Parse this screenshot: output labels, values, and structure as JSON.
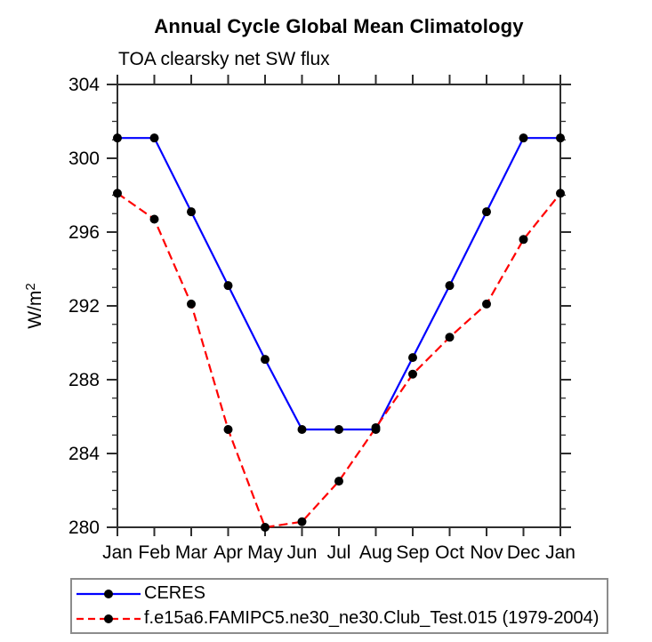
{
  "header": {
    "title": "Annual Cycle Global Mean Climatology",
    "subtitle": "TOA clearsky net SW flux"
  },
  "chart_data": {
    "type": "line",
    "title": "Annual Cycle Global Mean Climatology",
    "subtitle": "TOA clearsky net SW flux",
    "ylabel": "W/m^2",
    "ylabel_base": "W/m",
    "ylabel_sup": "2",
    "ylim": [
      280,
      304
    ],
    "yticks": [
      280,
      284,
      288,
      292,
      296,
      300,
      304
    ],
    "ytick_minor_step": 1,
    "grid": false,
    "legend_position": "below-bottom-left",
    "categories": [
      "Jan",
      "Feb",
      "Mar",
      "Apr",
      "May",
      "Jun",
      "Jul",
      "Aug",
      "Sep",
      "Oct",
      "Nov",
      "Dec",
      "Jan"
    ],
    "series": [
      {
        "name": "CERES",
        "color": "#0000ff",
        "line_style": "solid",
        "marker": "filled-circle",
        "marker_color": "#000000",
        "values": [
          301.1,
          301.1,
          297.1,
          293.1,
          289.1,
          285.3,
          285.3,
          285.3,
          289.2,
          293.1,
          297.1,
          301.1,
          301.1
        ]
      },
      {
        "name": "f.e15a6.FAMIPC5.ne30_ne30.Club_Test.015 (1979-2004)",
        "color": "#ff0000",
        "line_style": "dashed",
        "marker": "filled-circle",
        "marker_color": "#000000",
        "values": [
          298.1,
          296.7,
          292.1,
          285.3,
          280.0,
          280.3,
          282.5,
          285.4,
          288.3,
          290.3,
          292.1,
          295.6,
          298.1
        ]
      }
    ],
    "colors": {
      "axis": "#2e2e2e",
      "text": "#000000",
      "legend_border": "#8c8c8c",
      "background": "#ffffff"
    }
  }
}
